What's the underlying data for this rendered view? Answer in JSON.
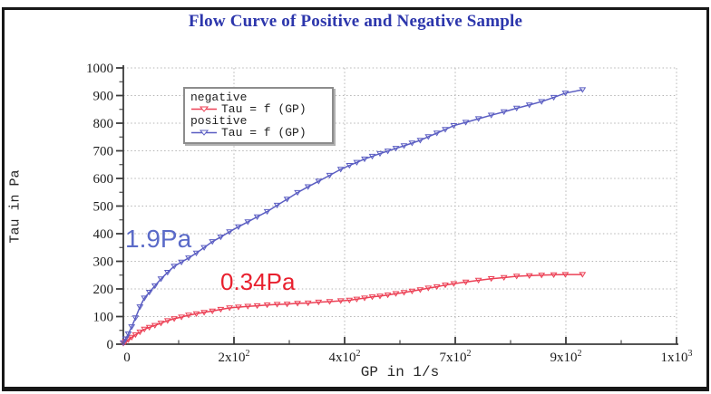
{
  "chart_data": {
    "type": "line",
    "title": "Flow Curve of Positive and Negative Sample",
    "title_color": "#2c36ac",
    "xlabel": "GP in 1/s",
    "ylabel": "Tau in Pa",
    "x_ticks": [
      {
        "base": "0",
        "sup": ""
      },
      {
        "base": "2x10",
        "sup": "2"
      },
      {
        "base": "4x10",
        "sup": "2"
      },
      {
        "base": "7x10",
        "sup": "2"
      },
      {
        "base": "9x10",
        "sup": "2"
      },
      {
        "base": "1x10",
        "sup": "3"
      }
    ],
    "x_tick_values": [
      0,
      200,
      400,
      700,
      900,
      1000
    ],
    "y_ticks": [
      0,
      100,
      200,
      300,
      400,
      500,
      600,
      700,
      800,
      900,
      1000
    ],
    "ylim": [
      0,
      1000
    ],
    "grid": true,
    "legend_position": "upper-left",
    "series": [
      {
        "name": "negative",
        "equation": "Tau = f (GP)",
        "color": "#ec4055",
        "points": [
          [
            0,
            3
          ],
          [
            4,
            9
          ],
          [
            9,
            16
          ],
          [
            15,
            25
          ],
          [
            22,
            34
          ],
          [
            30,
            44
          ],
          [
            38,
            54
          ],
          [
            47,
            61
          ],
          [
            57,
            68
          ],
          [
            68,
            76
          ],
          [
            80,
            85
          ],
          [
            92,
            92
          ],
          [
            105,
            98
          ],
          [
            118,
            105
          ],
          [
            132,
            110
          ],
          [
            146,
            115
          ],
          [
            161,
            120
          ],
          [
            176,
            126
          ],
          [
            192,
            131
          ],
          [
            208,
            134
          ],
          [
            225,
            137
          ],
          [
            242,
            139
          ],
          [
            260,
            142
          ],
          [
            278,
            144
          ],
          [
            296,
            145
          ],
          [
            315,
            148
          ],
          [
            334,
            149
          ],
          [
            353,
            152
          ],
          [
            373,
            154
          ],
          [
            393,
            157
          ],
          [
            413,
            159
          ],
          [
            433,
            163
          ],
          [
            454,
            167
          ],
          [
            475,
            171
          ],
          [
            496,
            174
          ],
          [
            517,
            178
          ],
          [
            539,
            183
          ],
          [
            561,
            187
          ],
          [
            583,
            192
          ],
          [
            605,
            197
          ],
          [
            627,
            203
          ],
          [
            650,
            208
          ],
          [
            673,
            214
          ],
          [
            696,
            219
          ],
          [
            719,
            225
          ],
          [
            742,
            231
          ],
          [
            765,
            237
          ],
          [
            788,
            241
          ],
          [
            811,
            246
          ],
          [
            834,
            248
          ],
          [
            856,
            250
          ],
          [
            878,
            251
          ],
          [
            899,
            252
          ],
          [
            915,
            252
          ]
        ]
      },
      {
        "name": "positive",
        "equation": "Tau = f (GP)",
        "color": "#5a5dc2",
        "points": [
          [
            0,
            5
          ],
          [
            4,
            19
          ],
          [
            9,
            37
          ],
          [
            15,
            63
          ],
          [
            22,
            95
          ],
          [
            30,
            135
          ],
          [
            38,
            167
          ],
          [
            47,
            188
          ],
          [
            57,
            211
          ],
          [
            68,
            236
          ],
          [
            80,
            260
          ],
          [
            92,
            282
          ],
          [
            105,
            297
          ],
          [
            118,
            312
          ],
          [
            132,
            330
          ],
          [
            146,
            350
          ],
          [
            161,
            371
          ],
          [
            176,
            388
          ],
          [
            192,
            407
          ],
          [
            208,
            425
          ],
          [
            225,
            443
          ],
          [
            242,
            461
          ],
          [
            260,
            480
          ],
          [
            278,
            503
          ],
          [
            296,
            525
          ],
          [
            315,
            549
          ],
          [
            334,
            570
          ],
          [
            353,
            590
          ],
          [
            373,
            611
          ],
          [
            393,
            633
          ],
          [
            413,
            647
          ],
          [
            433,
            658
          ],
          [
            454,
            670
          ],
          [
            475,
            680
          ],
          [
            496,
            690
          ],
          [
            517,
            699
          ],
          [
            539,
            709
          ],
          [
            561,
            718
          ],
          [
            583,
            728
          ],
          [
            605,
            738
          ],
          [
            627,
            751
          ],
          [
            650,
            764
          ],
          [
            673,
            777
          ],
          [
            696,
            791
          ],
          [
            719,
            803
          ],
          [
            742,
            816
          ],
          [
            765,
            829
          ],
          [
            788,
            841
          ],
          [
            811,
            854
          ],
          [
            834,
            866
          ],
          [
            856,
            878
          ],
          [
            878,
            893
          ],
          [
            899,
            909
          ],
          [
            915,
            921
          ]
        ]
      }
    ],
    "annotations": [
      {
        "text": "1.9Pa",
        "color": "#5a6ac8",
        "series": "positive"
      },
      {
        "text": "0.34Pa",
        "color": "#e8202e",
        "series": "negative"
      }
    ]
  }
}
